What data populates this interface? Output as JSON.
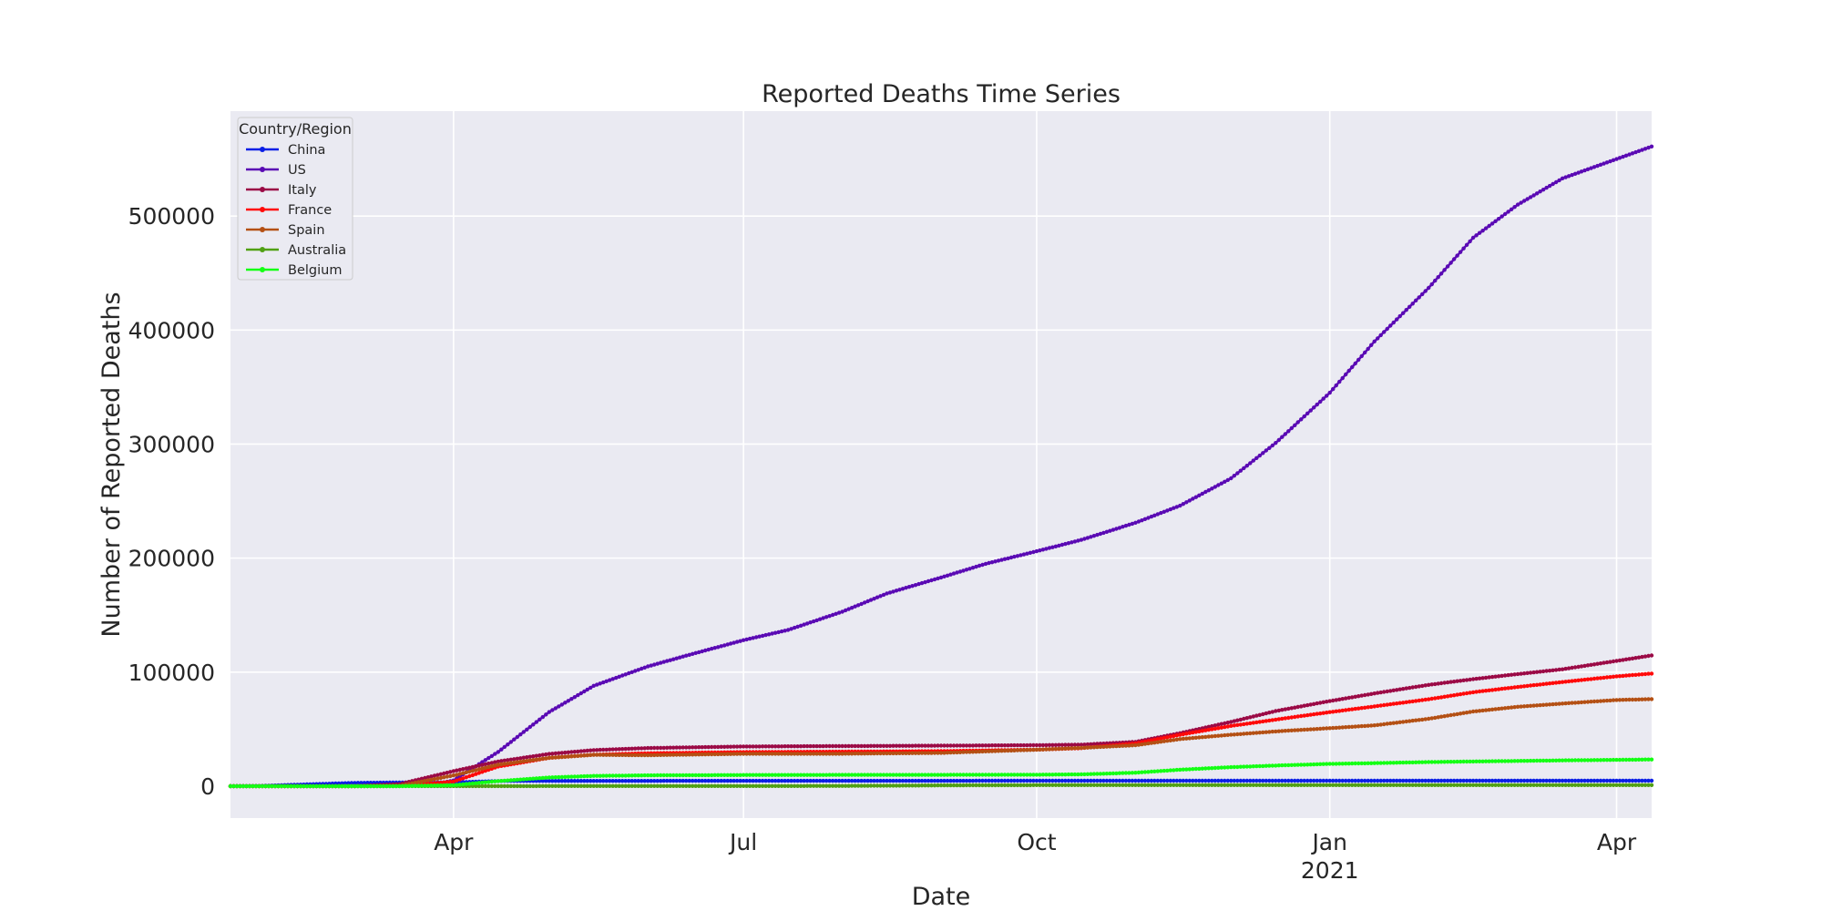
{
  "chart_data": {
    "type": "line",
    "title": "Reported Deaths Time Series",
    "xlabel": "Date",
    "ylabel": "Number of Reported Deaths",
    "x_range": [
      "2020-01-22",
      "2021-04-12"
    ],
    "ylim": [
      -28000,
      592000
    ],
    "x_ticks": [
      {
        "date": "2020-04-01",
        "label": "Apr",
        "sublabel": ""
      },
      {
        "date": "2020-07-01",
        "label": "Jul",
        "sublabel": ""
      },
      {
        "date": "2020-10-01",
        "label": "Oct",
        "sublabel": ""
      },
      {
        "date": "2021-01-01",
        "label": "Jan",
        "sublabel": "2021"
      },
      {
        "date": "2021-04-01",
        "label": "Apr",
        "sublabel": ""
      }
    ],
    "y_ticks": [
      0,
      100000,
      200000,
      300000,
      400000,
      500000
    ],
    "grid": true,
    "legend": {
      "title": "Country/Region",
      "position": "top-left"
    },
    "series": [
      {
        "name": "China",
        "color": "#0a1ee6",
        "points": [
          [
            "2020-01-22",
            17
          ],
          [
            "2020-02-01",
            259
          ],
          [
            "2020-02-15",
            1523
          ],
          [
            "2020-03-01",
            2870
          ],
          [
            "2020-03-15",
            3199
          ],
          [
            "2020-04-01",
            3318
          ],
          [
            "2020-04-17",
            4632
          ],
          [
            "2020-07-01",
            4641
          ],
          [
            "2020-10-01",
            4739
          ],
          [
            "2021-01-01",
            4788
          ],
          [
            "2021-04-12",
            4846
          ]
        ]
      },
      {
        "name": "US",
        "color": "#5a0ab4",
        "points": [
          [
            "2020-01-22",
            0
          ],
          [
            "2020-03-01",
            1
          ],
          [
            "2020-03-15",
            63
          ],
          [
            "2020-03-25",
            1000
          ],
          [
            "2020-04-01",
            5000
          ],
          [
            "2020-04-15",
            30000
          ],
          [
            "2020-05-01",
            65000
          ],
          [
            "2020-05-15",
            88000
          ],
          [
            "2020-06-01",
            105000
          ],
          [
            "2020-06-15",
            116000
          ],
          [
            "2020-07-01",
            128000
          ],
          [
            "2020-07-15",
            137000
          ],
          [
            "2020-08-01",
            153000
          ],
          [
            "2020-08-15",
            169000
          ],
          [
            "2020-09-01",
            183000
          ],
          [
            "2020-09-15",
            195000
          ],
          [
            "2020-10-01",
            206000
          ],
          [
            "2020-10-15",
            216000
          ],
          [
            "2020-11-01",
            231000
          ],
          [
            "2020-11-15",
            246000
          ],
          [
            "2020-12-01",
            270000
          ],
          [
            "2020-12-15",
            301000
          ],
          [
            "2021-01-01",
            345000
          ],
          [
            "2021-01-15",
            390000
          ],
          [
            "2021-02-01",
            437000
          ],
          [
            "2021-02-15",
            481000
          ],
          [
            "2021-03-01",
            510000
          ],
          [
            "2021-03-15",
            533000
          ],
          [
            "2021-04-01",
            550000
          ],
          [
            "2021-04-12",
            561000
          ]
        ]
      },
      {
        "name": "Italy",
        "color": "#9b0a46",
        "points": [
          [
            "2020-01-22",
            0
          ],
          [
            "2020-02-20",
            0
          ],
          [
            "2020-03-01",
            34
          ],
          [
            "2020-03-15",
            1809
          ],
          [
            "2020-04-01",
            13155
          ],
          [
            "2020-04-15",
            21645
          ],
          [
            "2020-05-01",
            28236
          ],
          [
            "2020-05-15",
            31610
          ],
          [
            "2020-06-01",
            33415
          ],
          [
            "2020-07-01",
            34767
          ],
          [
            "2020-08-01",
            35146
          ],
          [
            "2020-09-01",
            35491
          ],
          [
            "2020-10-01",
            35918
          ],
          [
            "2020-10-15",
            36372
          ],
          [
            "2020-11-01",
            38826
          ],
          [
            "2020-11-15",
            46464
          ],
          [
            "2020-12-01",
            56361
          ],
          [
            "2020-12-15",
            65857
          ],
          [
            "2021-01-01",
            74621
          ],
          [
            "2021-01-15",
            81325
          ],
          [
            "2021-02-01",
            88845
          ],
          [
            "2021-02-15",
            93835
          ],
          [
            "2021-03-01",
            98288
          ],
          [
            "2021-03-15",
            102499
          ],
          [
            "2021-04-01",
            109847
          ],
          [
            "2021-04-12",
            114612
          ]
        ]
      },
      {
        "name": "France",
        "color": "#ff0a0a",
        "points": [
          [
            "2020-01-22",
            0
          ],
          [
            "2020-03-01",
            2
          ],
          [
            "2020-03-15",
            127
          ],
          [
            "2020-04-01",
            4032
          ],
          [
            "2020-04-15",
            17188
          ],
          [
            "2020-05-01",
            24763
          ],
          [
            "2020-05-15",
            27559
          ],
          [
            "2020-06-01",
            28833
          ],
          [
            "2020-07-01",
            29875
          ],
          [
            "2020-08-01",
            30268
          ],
          [
            "2020-09-01",
            30706
          ],
          [
            "2020-10-01",
            32008
          ],
          [
            "2020-10-15",
            33325
          ],
          [
            "2020-11-01",
            37435
          ],
          [
            "2020-11-15",
            45054
          ],
          [
            "2020-12-01",
            52819
          ],
          [
            "2020-12-15",
            58391
          ],
          [
            "2021-01-01",
            64892
          ],
          [
            "2021-01-15",
            69949
          ],
          [
            "2021-02-01",
            76201
          ],
          [
            "2021-02-15",
            82374
          ],
          [
            "2021-03-01",
            86994
          ],
          [
            "2021-03-15",
            91311
          ],
          [
            "2021-04-01",
            96280
          ],
          [
            "2021-04-12",
            98750
          ]
        ]
      },
      {
        "name": "Spain",
        "color": "#b45014",
        "points": [
          [
            "2020-01-22",
            0
          ],
          [
            "2020-03-01",
            0
          ],
          [
            "2020-03-15",
            294
          ],
          [
            "2020-04-01",
            9387
          ],
          [
            "2020-04-15",
            18812
          ],
          [
            "2020-05-01",
            24824
          ],
          [
            "2020-05-15",
            27459
          ],
          [
            "2020-06-01",
            27127
          ],
          [
            "2020-07-01",
            28363
          ],
          [
            "2020-08-01",
            28445
          ],
          [
            "2020-09-01",
            29152
          ],
          [
            "2020-10-01",
            31973
          ],
          [
            "2020-10-15",
            33553
          ],
          [
            "2020-11-01",
            35878
          ],
          [
            "2020-11-15",
            41253
          ],
          [
            "2020-12-01",
            45069
          ],
          [
            "2020-12-15",
            48013
          ],
          [
            "2021-01-01",
            50837
          ],
          [
            "2021-01-15",
            53314
          ],
          [
            "2021-02-01",
            59081
          ],
          [
            "2021-02-15",
            65449
          ],
          [
            "2021-03-01",
            69609
          ],
          [
            "2021-03-15",
            72424
          ],
          [
            "2021-04-01",
            75541
          ],
          [
            "2021-04-12",
            76328
          ]
        ]
      },
      {
        "name": "Australia",
        "color": "#50a014",
        "points": [
          [
            "2020-01-22",
            0
          ],
          [
            "2020-03-01",
            1
          ],
          [
            "2020-04-01",
            19
          ],
          [
            "2020-05-01",
            93
          ],
          [
            "2020-07-01",
            104
          ],
          [
            "2020-08-01",
            201
          ],
          [
            "2020-09-01",
            663
          ],
          [
            "2020-10-01",
            897
          ],
          [
            "2021-01-01",
            909
          ],
          [
            "2021-04-12",
            910
          ]
        ]
      },
      {
        "name": "Belgium",
        "color": "#14ff14",
        "points": [
          [
            "2020-01-22",
            0
          ],
          [
            "2020-03-10",
            0
          ],
          [
            "2020-03-15",
            4
          ],
          [
            "2020-04-01",
            828
          ],
          [
            "2020-04-15",
            4440
          ],
          [
            "2020-05-01",
            7594
          ],
          [
            "2020-05-15",
            8959
          ],
          [
            "2020-06-01",
            9486
          ],
          [
            "2020-07-01",
            9754
          ],
          [
            "2020-08-01",
            9845
          ],
          [
            "2020-09-01",
            9899
          ],
          [
            "2020-10-01",
            10048
          ],
          [
            "2020-10-15",
            10327
          ],
          [
            "2020-11-01",
            11778
          ],
          [
            "2020-11-15",
            14421
          ],
          [
            "2020-12-01",
            16645
          ],
          [
            "2020-12-15",
            18054
          ],
          [
            "2021-01-01",
            19528
          ],
          [
            "2021-01-15",
            20183
          ],
          [
            "2021-02-01",
            21124
          ],
          [
            "2021-02-15",
            21630
          ],
          [
            "2021-03-01",
            22106
          ],
          [
            "2021-03-15",
            22589
          ],
          [
            "2021-04-01",
            23044
          ],
          [
            "2021-04-12",
            23405
          ]
        ]
      }
    ]
  }
}
